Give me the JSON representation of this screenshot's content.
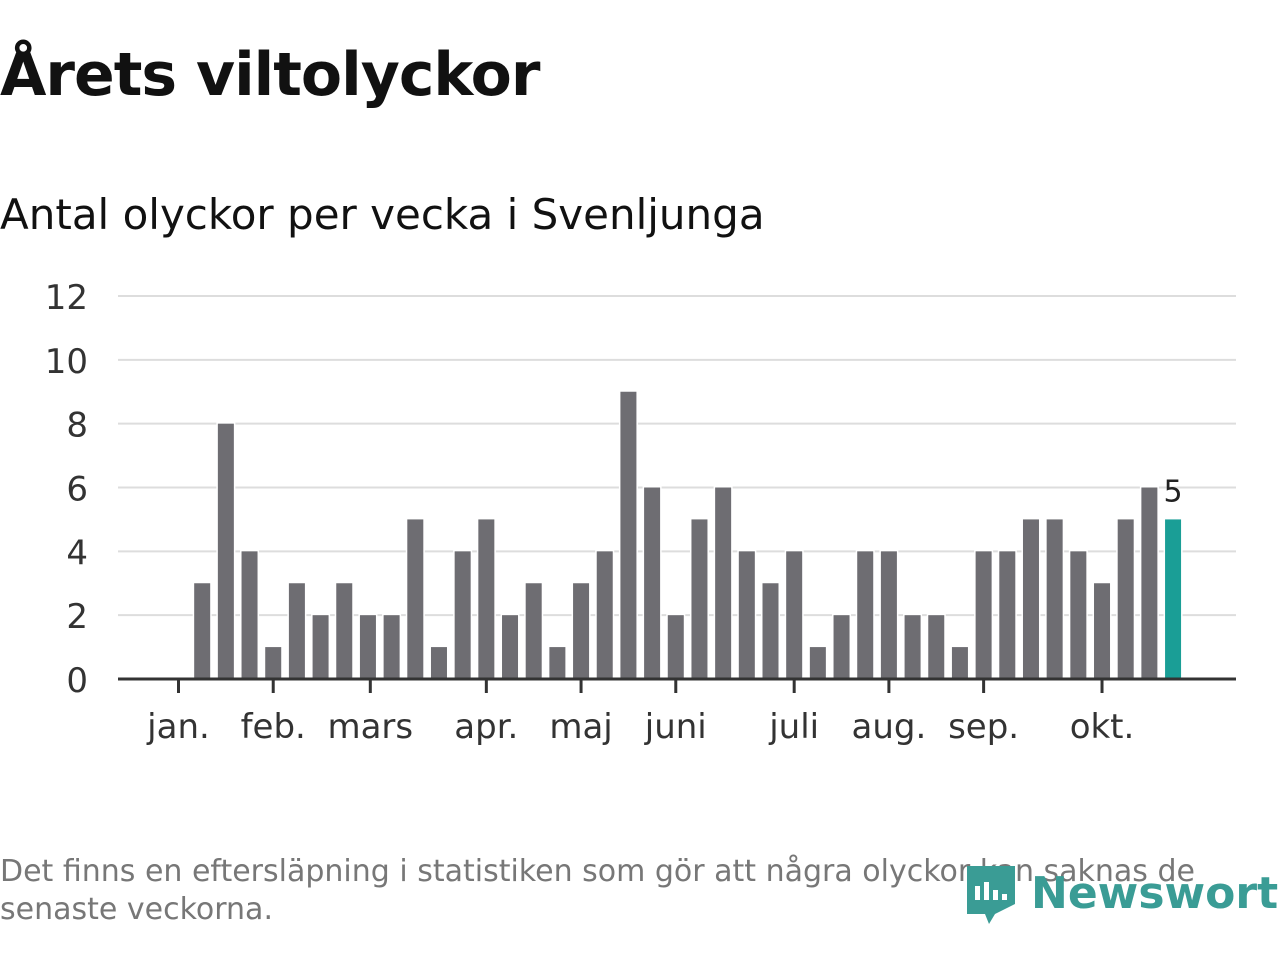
{
  "title": "Årets viltolyckor",
  "subtitle": "Antal olyckor per vecka i Svenljunga",
  "note": "Det finns en eftersläpning i statistiken som gör att några olyckor kan saknas de senaste veckorna.",
  "logo": "Newsworthy",
  "colors": {
    "bar": "#6e6d72",
    "highlight": "#1a9e96",
    "grid": "#dddddd",
    "axis": "#333333"
  },
  "chart_data": {
    "type": "bar",
    "title": "Antal olyckor per vecka i Svenljunga",
    "xlabel": "",
    "ylabel": "",
    "ylim": [
      0,
      12
    ],
    "yticks": [
      0,
      2,
      4,
      6,
      8,
      10,
      12
    ],
    "values": [
      0,
      3,
      8,
      4,
      1,
      3,
      2,
      3,
      2,
      2,
      5,
      1,
      4,
      5,
      2,
      3,
      1,
      3,
      4,
      9,
      6,
      2,
      5,
      6,
      4,
      3,
      4,
      1,
      2,
      4,
      4,
      2,
      2,
      1,
      4,
      4,
      5,
      5,
      4,
      3,
      5,
      6,
      5
    ],
    "month_ticks": [
      {
        "label": "jan.",
        "week": 0
      },
      {
        "label": "feb.",
        "week": 4
      },
      {
        "label": "mars",
        "week": 8.1
      },
      {
        "label": "apr.",
        "week": 13
      },
      {
        "label": "maj",
        "week": 17
      },
      {
        "label": "juni",
        "week": 21
      },
      {
        "label": "juli",
        "week": 26
      },
      {
        "label": "aug.",
        "week": 30
      },
      {
        "label": "sep.",
        "week": 34
      },
      {
        "label": "okt.",
        "week": 39
      }
    ],
    "highlight_last": true,
    "last_label": "5"
  }
}
